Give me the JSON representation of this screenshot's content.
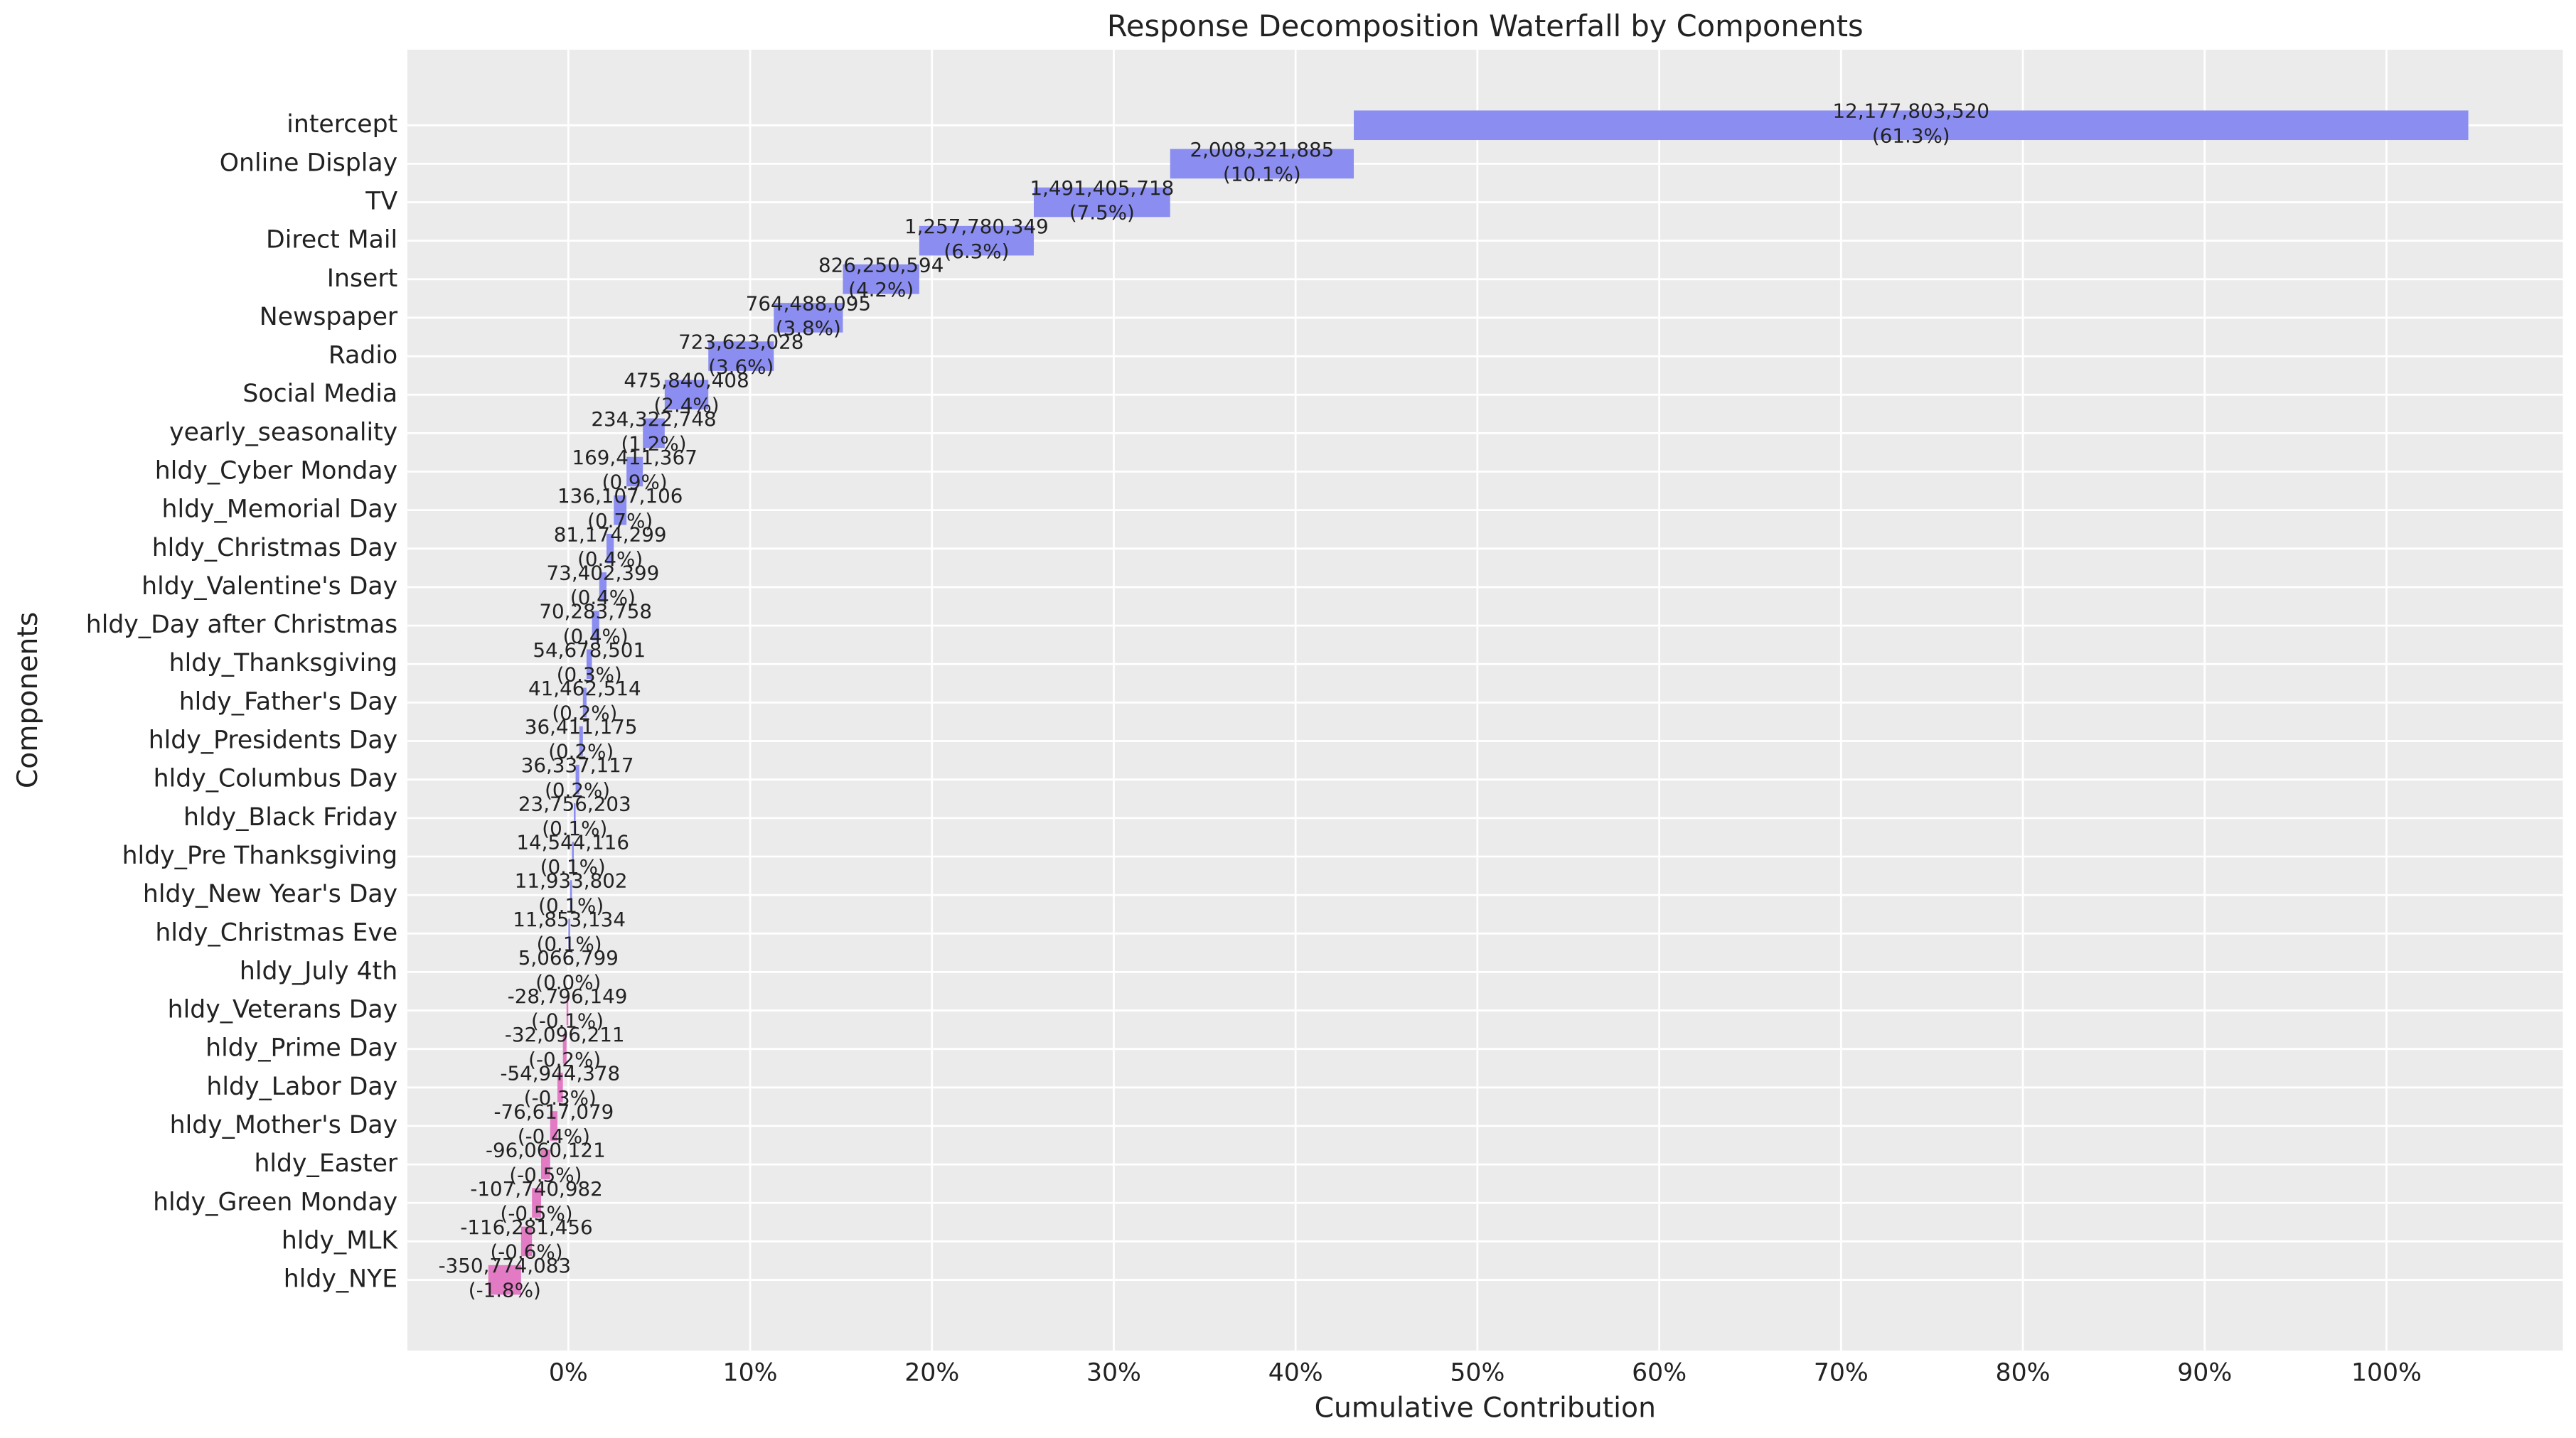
{
  "chart_data": {
    "type": "waterfall",
    "title": "Response Decomposition Waterfall by Components",
    "xlabel": "Cumulative Contribution",
    "ylabel": "Components",
    "categories": [
      "intercept",
      "Online Display",
      "TV",
      "Direct Mail",
      "Insert",
      "Newspaper",
      "Radio",
      "Social Media",
      "yearly_seasonality",
      "hldy_Cyber Monday",
      "hldy_Memorial Day",
      "hldy_Christmas Day",
      "hldy_Valentine's Day",
      "hldy_Day after Christmas",
      "hldy_Thanksgiving",
      "hldy_Father's Day",
      "hldy_Presidents Day",
      "hldy_Columbus Day",
      "hldy_Black Friday",
      "hldy_Pre Thanksgiving",
      "hldy_New Year's Day",
      "hldy_Christmas Eve",
      "hldy_July 4th",
      "hldy_Veterans Day",
      "hldy_Prime Day",
      "hldy_Labor Day",
      "hldy_Mother's Day",
      "hldy_Easter",
      "hldy_Green Monday",
      "hldy_MLK",
      "hldy_NYE"
    ],
    "values": [
      61.3,
      10.1,
      7.5,
      6.3,
      4.2,
      3.8,
      3.6,
      2.4,
      1.2,
      0.9,
      0.7,
      0.4,
      0.4,
      0.4,
      0.3,
      0.2,
      0.2,
      0.2,
      0.1,
      0.1,
      0.1,
      0.1,
      0,
      -0.1,
      -0.2,
      -0.3,
      -0.4,
      -0.5,
      -0.5,
      -0.6,
      -1.8
    ],
    "value_labels": [
      "(61.3%)",
      "(10.1%)",
      "(7.5%)",
      "(6.3%)",
      "(4.2%)",
      "(3.8%)",
      "(3.6%)",
      "(2.4%)",
      "(1.2%)",
      "(0.9%)",
      "(0.7%)",
      "(0.4%)",
      "(0.4%)",
      "(0.4%)",
      "(0.3%)",
      "(0.2%)",
      "(0.2%)",
      "(0.2%)",
      "(0.1%)",
      "(0.1%)",
      "(0.1%)",
      "(0.1%)",
      "(0.0%)",
      "(-0.1%)",
      "(-0.2%)",
      "(-0.3%)",
      "(-0.4%)",
      "(-0.5%)",
      "(-0.5%)",
      "(-0.6%)",
      "(-1.8%)"
    ],
    "amount_labels": [
      "12,177,803,520",
      "2,008,321,885",
      "1,491,405,718",
      "1,257,780,349",
      "826,250,594",
      "764,488,095",
      "723,623,028",
      "475,840,408",
      "234,322,748",
      "169,411,367",
      "136,107,106",
      "81,174,299",
      "73,402,399",
      "70,283,758",
      "54,678,501",
      "41,462,514",
      "36,411,175",
      "36,337,117",
      "23,756,203",
      "14,544,116",
      "11,933,802",
      "11,853,134",
      "5,066,799",
      "-28,796,149",
      "-32,096,211",
      "-54,944,378",
      "-76,617,079",
      "-96,060,121",
      "-107,740,982",
      "-116,281,456",
      "-350,774,083"
    ],
    "positive_color": "#8b8ef0",
    "negative_color": "#e37ac4",
    "xlim": [
      -8.85,
      109.7
    ],
    "xticks": [
      {
        "value": 0,
        "label": "0%"
      },
      {
        "value": 10,
        "label": "10%"
      },
      {
        "value": 20,
        "label": "20%"
      },
      {
        "value": 30,
        "label": "30%"
      },
      {
        "value": 40,
        "label": "40%"
      },
      {
        "value": 50,
        "label": "50%"
      },
      {
        "value": 60,
        "label": "60%"
      },
      {
        "value": 70,
        "label": "70%"
      },
      {
        "value": 80,
        "label": "80%"
      },
      {
        "value": 90,
        "label": "90%"
      },
      {
        "value": 100,
        "label": "100%"
      }
    ],
    "grid": true
  }
}
